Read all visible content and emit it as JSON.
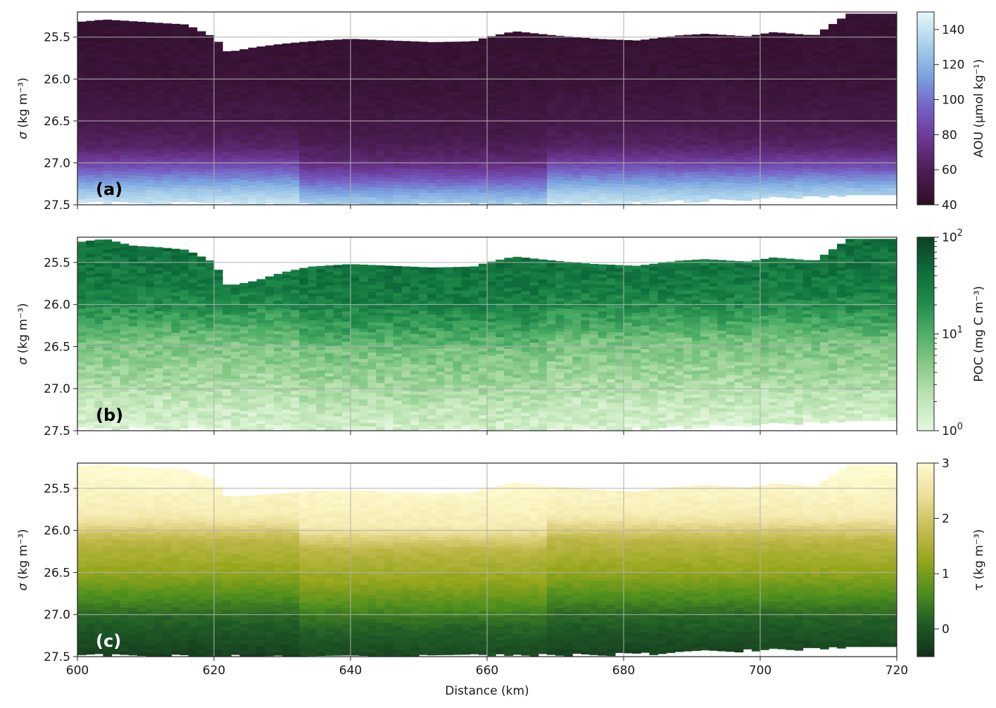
{
  "chart_data": [
    {
      "type": "heatmap",
      "panel_label": "(a)",
      "xlim": [
        600,
        720
      ],
      "ylim": [
        27.5,
        25.2
      ],
      "ylabel_symbol": "σ",
      "ylabel_units": "(kg m⁻³)",
      "yticks": [
        "25.5",
        "26.0",
        "26.5",
        "27.0",
        "27.5"
      ],
      "ytick_values": [
        25.5,
        26.0,
        26.5,
        27.0,
        27.5
      ],
      "xtick_values": [
        600,
        620,
        640,
        660,
        680,
        700,
        720
      ],
      "xticks": [
        "",
        "",
        "",
        "",
        "",
        "",
        ""
      ],
      "grid": true,
      "colorbar": {
        "label": "AOU (µmol kg⁻¹)",
        "scale": "linear",
        "range": [
          40,
          150
        ],
        "ticks": [
          "40",
          "60",
          "80",
          "100",
          "120",
          "140"
        ],
        "tick_values": [
          40,
          60,
          80,
          100,
          120,
          140
        ],
        "colors": [
          "#2e0e25",
          "#4a1c50",
          "#6b3590",
          "#7660c4",
          "#7aa3e0",
          "#a9d1ea",
          "#eaf7f9"
        ]
      },
      "surface_sigma": [
        [
          600,
          25.32
        ],
        [
          604,
          25.29
        ],
        [
          608,
          25.31
        ],
        [
          612,
          25.33
        ],
        [
          616,
          25.35
        ],
        [
          620,
          25.5
        ],
        [
          622,
          25.68
        ],
        [
          626,
          25.62
        ],
        [
          630,
          25.58
        ],
        [
          634,
          25.55
        ],
        [
          640,
          25.52
        ],
        [
          646,
          25.54
        ],
        [
          652,
          25.56
        ],
        [
          658,
          25.55
        ],
        [
          660,
          25.5
        ],
        [
          664,
          25.43
        ],
        [
          670,
          25.48
        ],
        [
          676,
          25.52
        ],
        [
          682,
          25.54
        ],
        [
          688,
          25.48
        ],
        [
          692,
          25.46
        ],
        [
          698,
          25.49
        ],
        [
          702,
          25.44
        ],
        [
          708,
          25.48
        ],
        [
          713,
          25.22
        ],
        [
          720,
          25.22
        ]
      ],
      "bottom_sigma": [
        [
          600,
          27.45
        ],
        [
          640,
          27.48
        ],
        [
          680,
          27.46
        ],
        [
          720,
          27.35
        ]
      ],
      "value_profile": [
        [
          25.3,
          45
        ],
        [
          26.0,
          48
        ],
        [
          26.5,
          55
        ],
        [
          26.8,
          65
        ],
        [
          27.0,
          85
        ],
        [
          27.15,
          105
        ],
        [
          27.3,
          125
        ],
        [
          27.5,
          145
        ]
      ]
    },
    {
      "type": "heatmap",
      "panel_label": "(b)",
      "xlim": [
        600,
        720
      ],
      "ylim": [
        27.5,
        25.2
      ],
      "ylabel_symbol": "σ",
      "ylabel_units": "(kg m⁻³)",
      "yticks": [
        "25.5",
        "26.0",
        "26.5",
        "27.0",
        "27.5"
      ],
      "ytick_values": [
        25.5,
        26.0,
        26.5,
        27.0,
        27.5
      ],
      "xtick_values": [
        600,
        620,
        640,
        660,
        680,
        700,
        720
      ],
      "xticks": [
        "",
        "",
        "",
        "",
        "",
        "",
        ""
      ],
      "grid": true,
      "colorbar": {
        "label": "POC (mg C m⁻³)",
        "scale": "log",
        "range": [
          1,
          100
        ],
        "ticks_base": [
          "10",
          "10",
          "10"
        ],
        "ticks_exp": [
          "0",
          "1",
          "2"
        ],
        "tick_values": [
          1,
          10,
          100
        ],
        "colors": [
          "#e6f7df",
          "#bfe5b6",
          "#8ccb8a",
          "#4fae67",
          "#208a4b",
          "#0d6b3a",
          "#0b4023"
        ]
      },
      "surface_sigma": [
        [
          600,
          25.26
        ],
        [
          604,
          25.22
        ],
        [
          608,
          25.3
        ],
        [
          612,
          25.32
        ],
        [
          616,
          25.35
        ],
        [
          620,
          25.5
        ],
        [
          622,
          25.78
        ],
        [
          626,
          25.72
        ],
        [
          630,
          25.62
        ],
        [
          634,
          25.55
        ],
        [
          640,
          25.52
        ],
        [
          646,
          25.54
        ],
        [
          652,
          25.56
        ],
        [
          658,
          25.55
        ],
        [
          660,
          25.5
        ],
        [
          664,
          25.43
        ],
        [
          670,
          25.48
        ],
        [
          676,
          25.52
        ],
        [
          682,
          25.54
        ],
        [
          688,
          25.48
        ],
        [
          692,
          25.46
        ],
        [
          698,
          25.49
        ],
        [
          702,
          25.44
        ],
        [
          708,
          25.48
        ],
        [
          713,
          25.22
        ],
        [
          720,
          25.22
        ]
      ],
      "bottom_sigma": [
        [
          600,
          27.45
        ],
        [
          640,
          27.48
        ],
        [
          680,
          27.46
        ],
        [
          720,
          27.35
        ]
      ],
      "value_profile": [
        [
          25.3,
          40
        ],
        [
          25.8,
          30
        ],
        [
          26.1,
          15
        ],
        [
          26.4,
          6
        ],
        [
          26.8,
          3.5
        ],
        [
          27.1,
          2
        ],
        [
          27.5,
          1.2
        ]
      ]
    },
    {
      "type": "heatmap",
      "panel_label": "(c)",
      "xlim": [
        600,
        720
      ],
      "ylim": [
        27.5,
        25.2
      ],
      "xlabel": "Distance (km)",
      "ylabel_symbol": "σ",
      "ylabel_units": "(kg m⁻³)",
      "yticks": [
        "25.5",
        "26.0",
        "26.5",
        "27.0",
        "27.5"
      ],
      "ytick_values": [
        25.5,
        26.0,
        26.5,
        27.0,
        27.5
      ],
      "xtick_values": [
        600,
        620,
        640,
        660,
        680,
        700,
        720
      ],
      "xticks": [
        "600",
        "620",
        "640",
        "660",
        "680",
        "700",
        "720"
      ],
      "grid": true,
      "colorbar": {
        "label": "τ (kg m⁻³)",
        "scale": "linear",
        "range": [
          -0.5,
          3
        ],
        "ticks": [
          "0",
          "1",
          "2",
          "3"
        ],
        "tick_values": [
          0,
          1,
          2,
          3
        ],
        "colors": [
          "#12301a",
          "#1f5a27",
          "#4e8f1e",
          "#96a61c",
          "#c8bd55",
          "#ecdf9a",
          "#fffbd0"
        ]
      },
      "surface_sigma": [
        [
          600,
          25.24
        ],
        [
          604,
          25.22
        ],
        [
          608,
          25.24
        ],
        [
          612,
          25.26
        ],
        [
          616,
          25.28
        ],
        [
          620,
          25.4
        ],
        [
          622,
          25.6
        ],
        [
          626,
          25.58
        ],
        [
          630,
          25.56
        ],
        [
          634,
          25.53
        ],
        [
          640,
          25.52
        ],
        [
          646,
          25.54
        ],
        [
          652,
          25.56
        ],
        [
          658,
          25.55
        ],
        [
          660,
          25.5
        ],
        [
          664,
          25.43
        ],
        [
          670,
          25.48
        ],
        [
          676,
          25.52
        ],
        [
          682,
          25.54
        ],
        [
          688,
          25.48
        ],
        [
          692,
          25.46
        ],
        [
          698,
          25.49
        ],
        [
          702,
          25.44
        ],
        [
          708,
          25.48
        ],
        [
          713,
          25.22
        ],
        [
          720,
          25.22
        ]
      ],
      "bottom_sigma": [
        [
          600,
          27.46
        ],
        [
          640,
          27.48
        ],
        [
          680,
          27.45
        ],
        [
          720,
          27.35
        ]
      ],
      "value_profile": [
        [
          25.3,
          3.0
        ],
        [
          25.8,
          2.7
        ],
        [
          26.1,
          1.7
        ],
        [
          26.5,
          1.2
        ],
        [
          26.8,
          0.6
        ],
        [
          27.0,
          0.2
        ],
        [
          27.5,
          -0.3
        ]
      ]
    }
  ]
}
